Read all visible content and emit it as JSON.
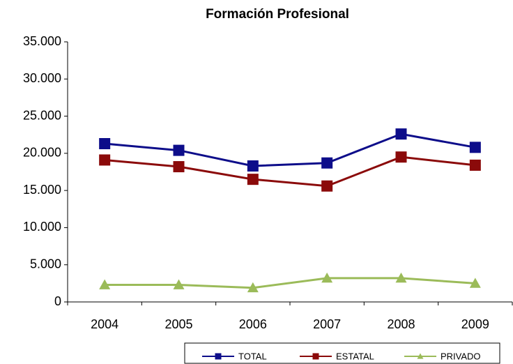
{
  "chart_data": {
    "type": "line",
    "title": "Formación Profesional",
    "categories": [
      "2004",
      "2005",
      "2006",
      "2007",
      "2008",
      "2009"
    ],
    "series": [
      {
        "name": "TOTAL",
        "color": "#0d0d8a",
        "marker": "square",
        "values": [
          21300,
          20400,
          18300,
          18700,
          22600,
          20800
        ]
      },
      {
        "name": "ESTATAL",
        "color": "#8b0a0a",
        "marker": "square",
        "values": [
          19100,
          18200,
          16500,
          15600,
          19500,
          18400
        ]
      },
      {
        "name": "PRIVADO",
        "color": "#9bbb59",
        "marker": "triangle",
        "values": [
          2300,
          2300,
          1900,
          3200,
          3200,
          2500
        ]
      }
    ],
    "ylim": [
      0,
      35000
    ],
    "yticks": [
      0,
      {
        "value": 5000,
        "label": "5.000"
      },
      {
        "value": 10000,
        "label": "10.000"
      },
      {
        "value": 15000,
        "label": "15.000"
      },
      {
        "value": 20000,
        "label": "20.000"
      },
      {
        "value": 25000,
        "label": "25.000"
      },
      {
        "value": 30000,
        "label": "30.000"
      },
      {
        "value": 35000,
        "label": "35.000"
      }
    ],
    "legend": "bottom"
  }
}
